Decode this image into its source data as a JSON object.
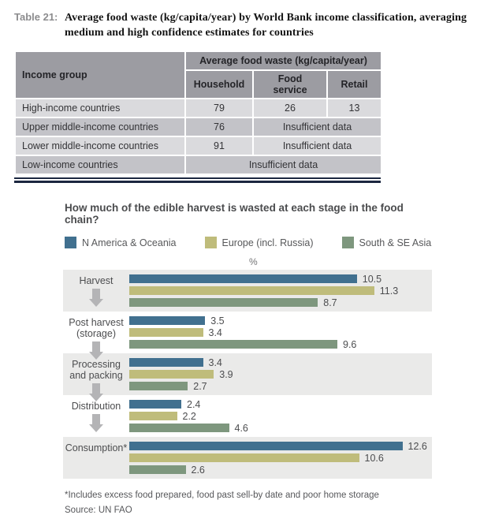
{
  "colors": {
    "series_blue": "#41708f",
    "series_khaki": "#bfbc7b",
    "series_green": "#7e977e",
    "table_header_gray": "#9c9ca2",
    "row_light_gray": "#dadadd",
    "row_dark_gray": "#c3c3c8",
    "band_gray": "#eaeae9",
    "navy_rule": "#1c2740",
    "arrow_gray": "#b4b4b6"
  },
  "chart_data": [
    {
      "type": "table",
      "tag": "Table 21:",
      "title": "Average food waste (kg/capita/year) by World Bank income classification, averaging medium and high confidence estimates for countries",
      "title_lines": [
        "Average food waste (kg/capita/year) by World Bank income classification, averaging",
        "medium and high confidence estimates for countries"
      ],
      "corner_header": "Income group",
      "group_header": "Average food waste (kg/capita/year)",
      "columns": [
        "Household",
        "Food service",
        "Retail"
      ],
      "rows": [
        {
          "label": "High-income countries",
          "cells": [
            "79",
            "26",
            "13"
          ]
        },
        {
          "label": "Upper middle-income countries",
          "cells": [
            "76",
            "Insufficient data"
          ]
        },
        {
          "label": "Lower middle-income countries",
          "cells": [
            "91",
            "Insufficient data"
          ]
        },
        {
          "label": "Low-income countries",
          "cells": [
            "Insufficient data"
          ]
        }
      ]
    },
    {
      "type": "bar",
      "orientation": "horizontal",
      "title": "How much of the edible harvest is wasted at each stage in the food chain?",
      "unit": "%",
      "categories": [
        "Harvest",
        "Post harvest (storage)",
        "Processing and packing",
        "Distribution",
        "Consumption*"
      ],
      "series": [
        {
          "name": "N America & Oceania",
          "color": "#41708f",
          "values": [
            10.5,
            3.5,
            3.4,
            2.4,
            12.6
          ]
        },
        {
          "name": "Europe (incl. Russia)",
          "color": "#bfbc7b",
          "values": [
            11.3,
            3.4,
            3.9,
            2.2,
            10.6
          ]
        },
        {
          "name": "South & SE Asia",
          "color": "#7e977e",
          "values": [
            8.7,
            9.6,
            2.7,
            4.6,
            2.6
          ]
        }
      ],
      "xlim": [
        0,
        13.2
      ],
      "legend_position": "top",
      "grid": false,
      "band_shading": "alternate-start-shaded",
      "footnote": "*Includes excess food prepared, food past sell-by date and poor home storage",
      "source": "Source: UN FAO"
    }
  ]
}
